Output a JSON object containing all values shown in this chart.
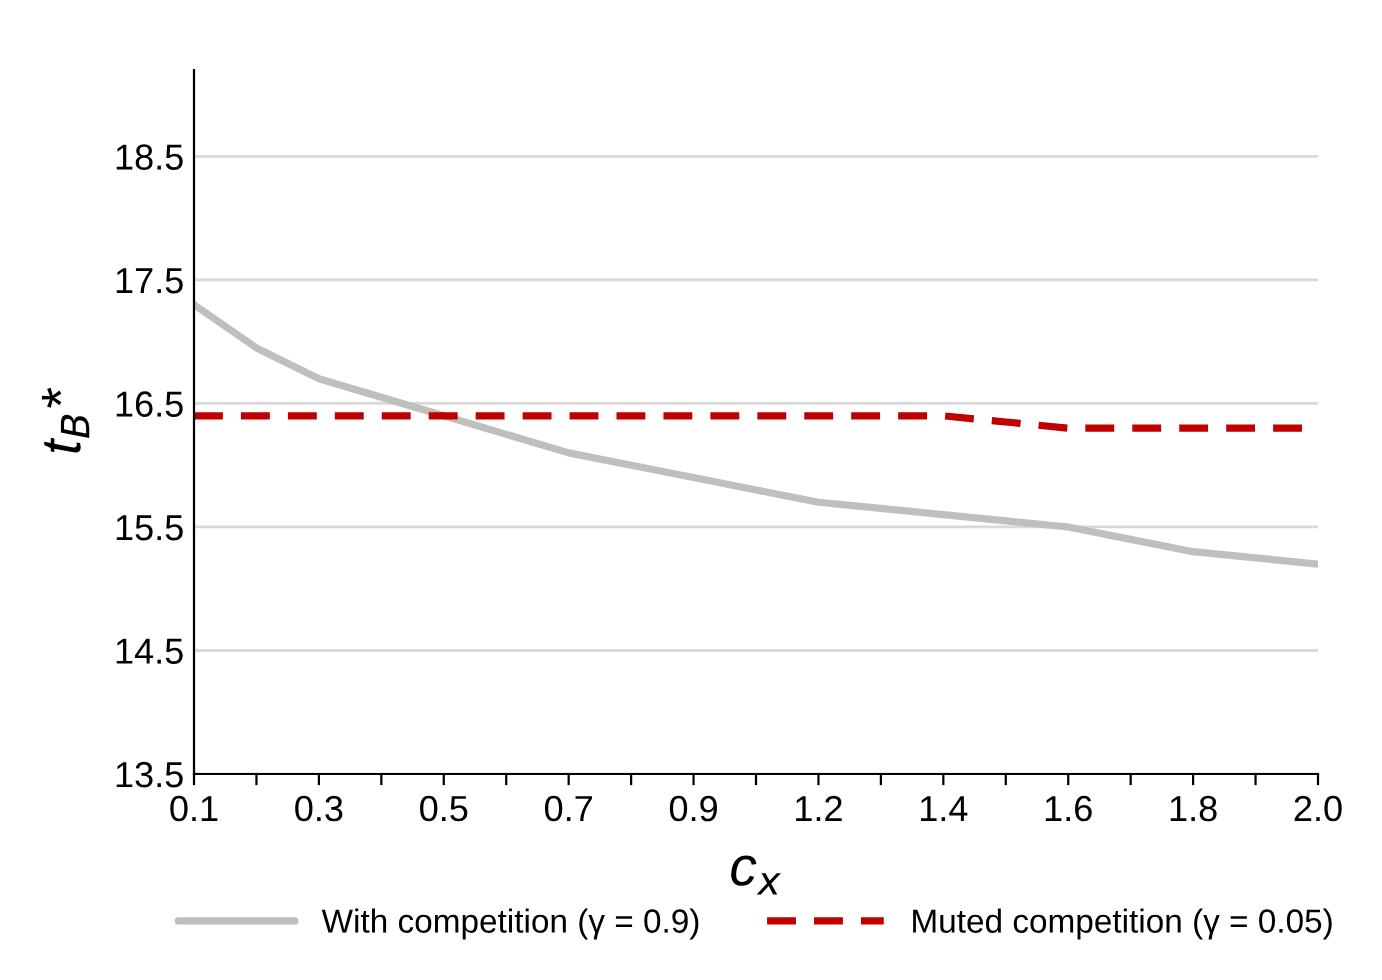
{
  "chart_data": {
    "type": "line",
    "xlabel": "c$_{x}$",
    "ylabel": "t$_{B}$*",
    "categories": [
      "0.1",
      null,
      "0.3",
      null,
      "0.5",
      null,
      "0.7",
      null,
      "0.9",
      null,
      "1.2",
      null,
      "1.4",
      null,
      "1.6",
      null,
      "1.8",
      null,
      "2.0"
    ],
    "series": [
      {
        "name": "With competition (γ = 0.9)",
        "color": "#bfbfbf",
        "line_style": "solid",
        "values": [
          17.3,
          16.95,
          16.7,
          16.55,
          16.4,
          16.25,
          16.1,
          16.0,
          15.9,
          15.8,
          15.7,
          15.65,
          15.6,
          15.55,
          15.5,
          15.4,
          15.3,
          15.25,
          15.2
        ]
      },
      {
        "name": "Muted competition (γ = 0.05)",
        "color": "#c00000",
        "line_style": "dashed",
        "values": [
          16.4,
          16.4,
          16.4,
          16.4,
          16.4,
          16.4,
          16.4,
          16.4,
          16.4,
          16.4,
          16.4,
          16.4,
          16.4,
          16.35,
          16.3,
          16.3,
          16.3,
          16.3,
          16.3
        ]
      }
    ],
    "ylim": [
      13.5,
      19.2
    ],
    "yticks": [
      13.5,
      14.5,
      15.5,
      16.5,
      17.5,
      18.5
    ],
    "grid": "y",
    "legend": "bottom",
    "marker": "none"
  }
}
